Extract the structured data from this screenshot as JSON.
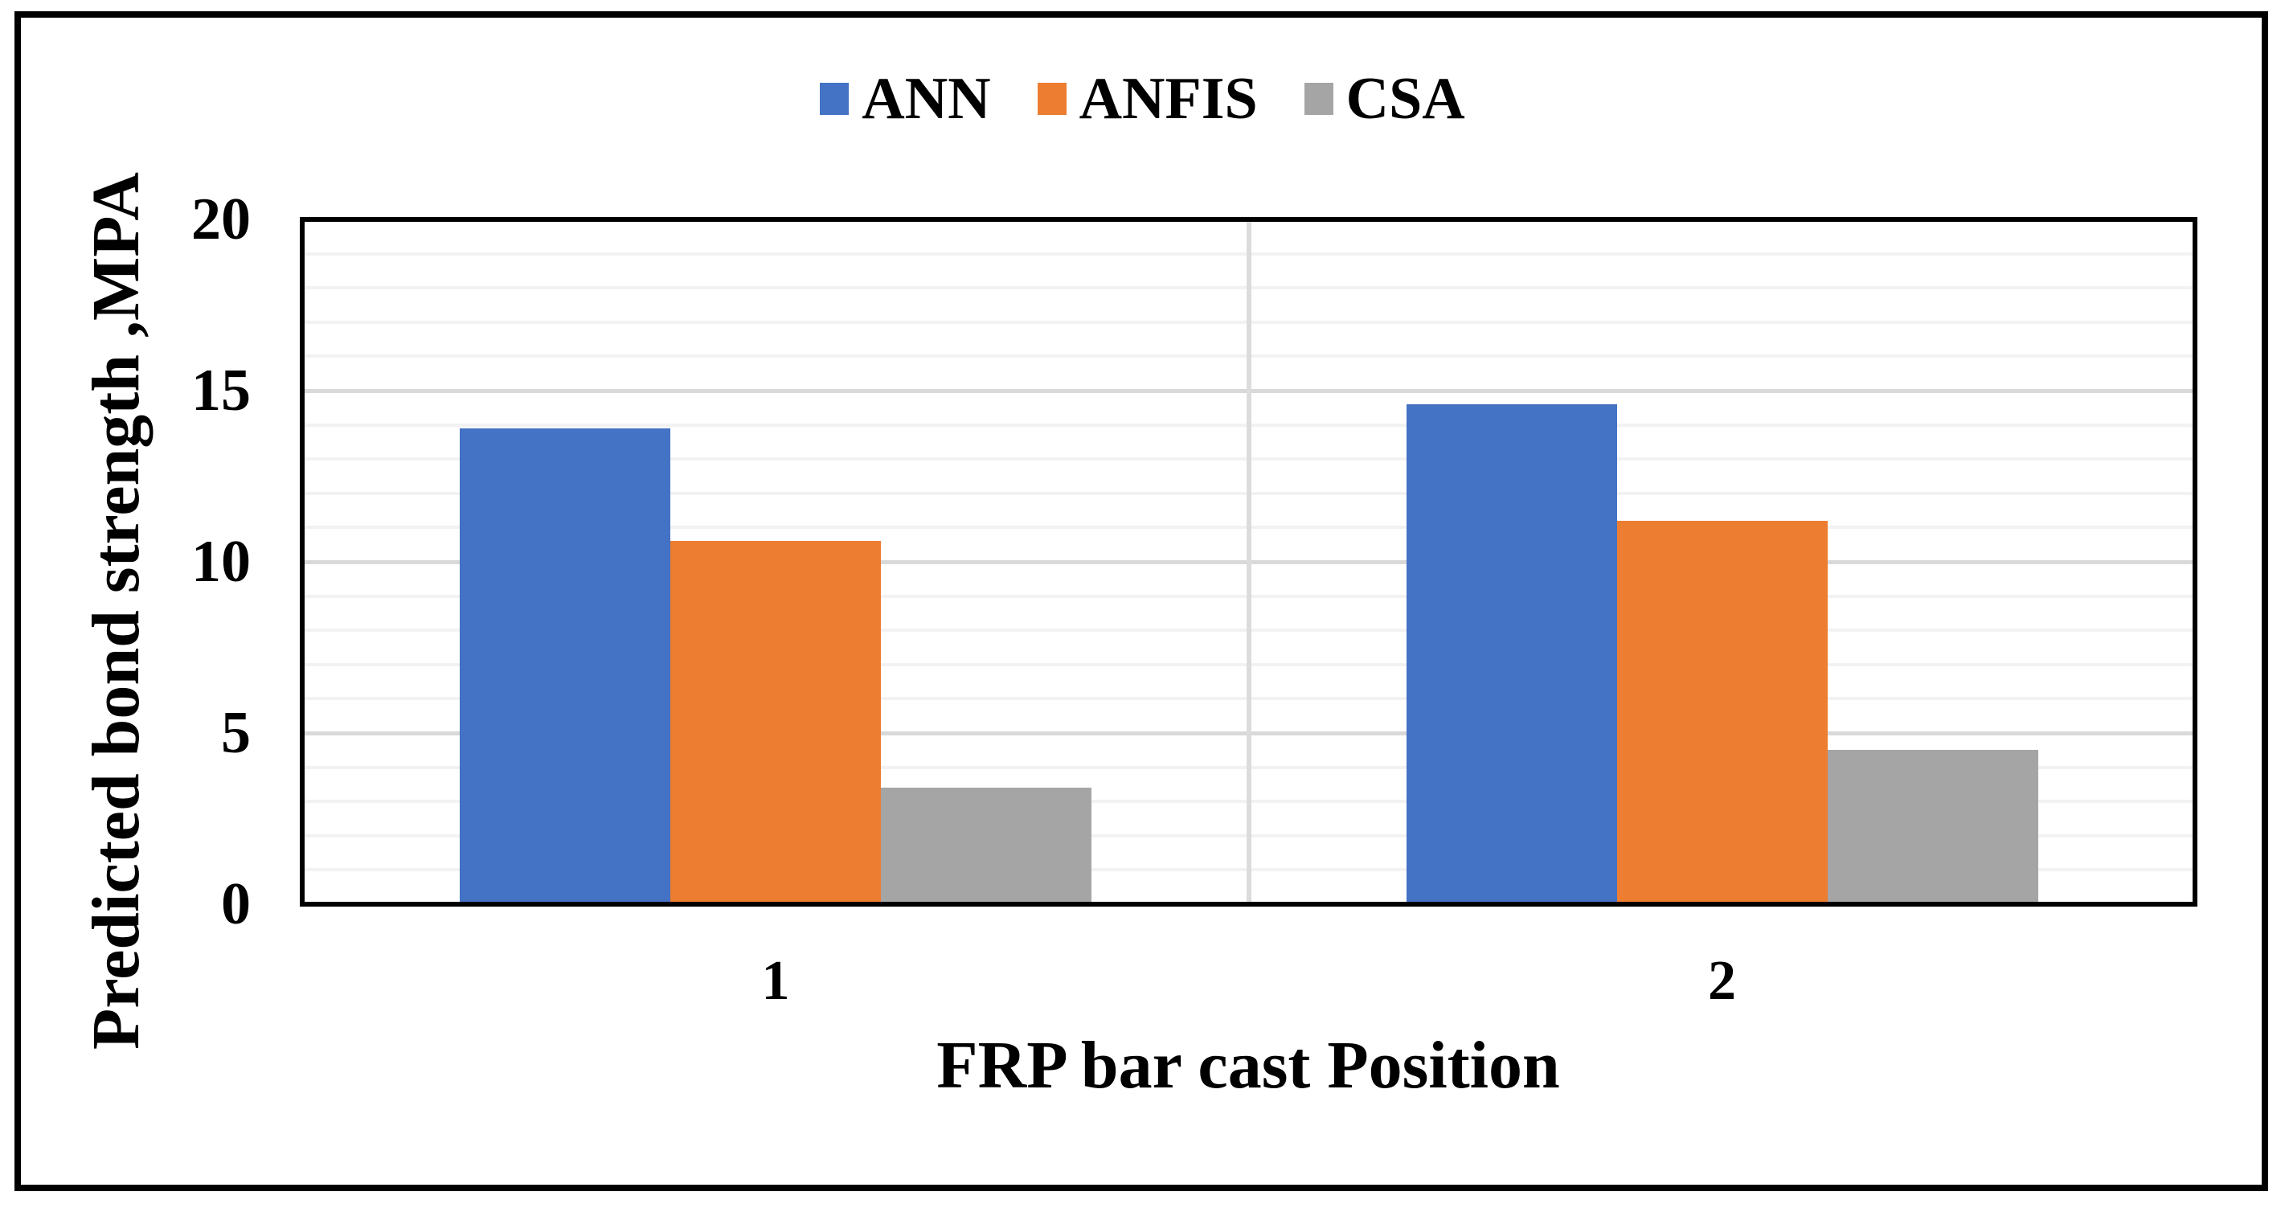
{
  "figure": {
    "background": "#ffffff",
    "border_color": "#000000"
  },
  "legend": {
    "position": "top-center",
    "items": [
      {
        "label": "ANN",
        "color": "#4472C4"
      },
      {
        "label": "ANFIS",
        "color": "#ED7D31"
      },
      {
        "label": "CSA",
        "color": "#A5A5A5"
      }
    ]
  },
  "chart_data": {
    "type": "bar",
    "title": "",
    "categories": [
      "1",
      "2"
    ],
    "series": [
      {
        "name": "ANN",
        "color": "#4472C4",
        "values": [
          13.9,
          14.6
        ]
      },
      {
        "name": "ANFIS",
        "color": "#ED7D31",
        "values": [
          10.6,
          11.2
        ]
      },
      {
        "name": "CSA",
        "color": "#A5A5A5",
        "values": [
          3.4,
          4.5
        ]
      }
    ],
    "xlabel": "FRP bar cast Position",
    "ylabel": "Predicted bond strength ,MPA",
    "ylim": [
      0,
      20
    ],
    "y_major_ticks": [
      20,
      15,
      10,
      5,
      0
    ],
    "y_minor_step": 1,
    "grid": {
      "horizontal_minor": true,
      "horizontal_major": true,
      "vertical_category_divider": true
    },
    "legend_position": "top-center",
    "style_colors": {
      "minor_gridline": "#F2F2F2",
      "major_gridline": "#D9D9D9",
      "divider_gridline": "#DCDCDC",
      "frame": "#000000",
      "text": "#000000"
    }
  }
}
